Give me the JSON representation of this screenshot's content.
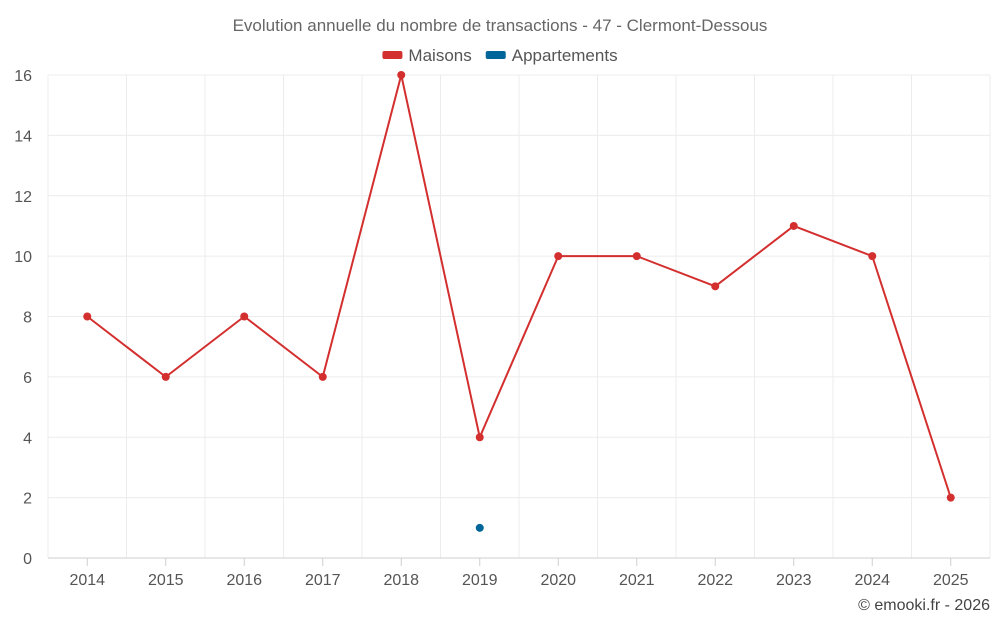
{
  "chart_data": {
    "type": "line",
    "title": "Evolution annuelle du nombre de transactions - 47 - Clermont-Dessous",
    "x": [
      "2014",
      "2015",
      "2016",
      "2017",
      "2018",
      "2019",
      "2020",
      "2021",
      "2022",
      "2023",
      "2024",
      "2025"
    ],
    "series": [
      {
        "name": "Maisons",
        "color": "#d32f2f",
        "values": [
          8,
          6,
          8,
          6,
          16,
          4,
          10,
          10,
          9,
          11,
          10,
          2
        ]
      },
      {
        "name": "Appartements",
        "color": "#006699",
        "values": [
          null,
          null,
          null,
          null,
          null,
          1,
          null,
          null,
          null,
          null,
          null,
          null
        ]
      }
    ],
    "ylim": [
      0,
      16
    ],
    "yticks": [
      0,
      2,
      4,
      6,
      8,
      10,
      12,
      14,
      16
    ],
    "grid": true,
    "legend_position": "top-center"
  },
  "credit": "© emooki.fr - 2026"
}
